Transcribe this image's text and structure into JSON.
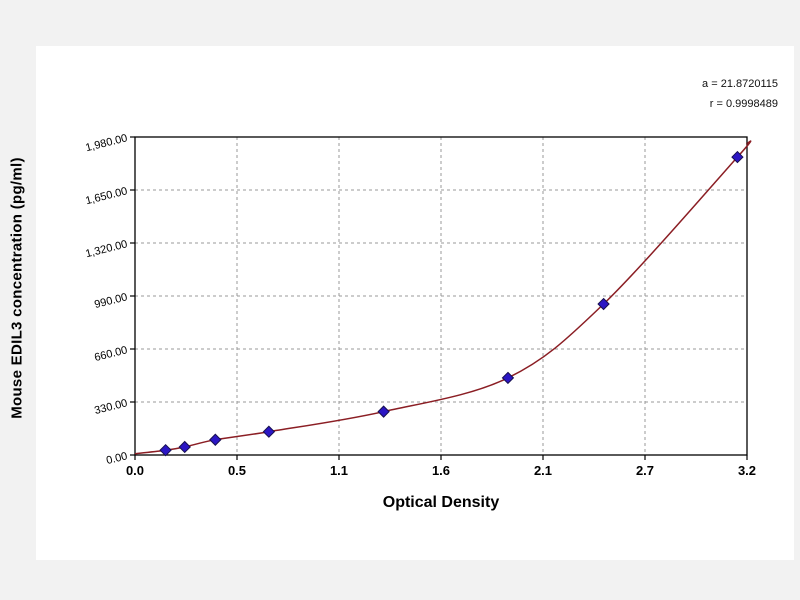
{
  "page": {
    "background": "#f2f2f2",
    "panel_background": "#ffffff"
  },
  "chart_data": {
    "type": "scatter",
    "title": "",
    "xlabel": "Optical Density",
    "ylabel": "Mouse EDIL3 concentration (pg/ml)",
    "x_tick_labels": [
      "0.0",
      "0.5",
      "1.1",
      "1.6",
      "2.1",
      "2.7",
      "3.2"
    ],
    "y_tick_labels": [
      "0.00",
      "330.00",
      "660.00",
      "990.00",
      "1,320.00",
      "1,650.00",
      "1,980.00"
    ],
    "xlim": [
      0,
      3.2
    ],
    "ylim": [
      0,
      1980
    ],
    "grid": true,
    "legend_position": "none",
    "annotations": [
      {
        "text": "a = 21.8720115"
      },
      {
        "text": "r = 0.9998489"
      }
    ],
    "series": [
      {
        "name": "standards",
        "type": "scatter",
        "marker": "diamond",
        "color": "#2b16c4",
        "outline_color": "#17104f",
        "points": [
          [
            0.16,
            30
          ],
          [
            0.26,
            50
          ],
          [
            0.42,
            95
          ],
          [
            0.7,
            145
          ],
          [
            1.3,
            270
          ],
          [
            1.95,
            480
          ],
          [
            2.45,
            940
          ],
          [
            3.15,
            1855
          ]
        ]
      },
      {
        "name": "fitted-curve",
        "type": "line",
        "color": "#8b1e24",
        "points": [
          [
            0,
            8
          ],
          [
            0.16,
            30
          ],
          [
            0.26,
            50
          ],
          [
            0.42,
            95
          ],
          [
            0.7,
            145
          ],
          [
            1.3,
            270
          ],
          [
            1.95,
            480
          ],
          [
            2.45,
            940
          ],
          [
            3.15,
            1855
          ],
          [
            3.2,
            1940
          ]
        ]
      }
    ],
    "colors": {
      "grid": "#999999",
      "axis": "#000000",
      "plot_background": "#ffffff",
      "tick_label": "#000000"
    }
  }
}
